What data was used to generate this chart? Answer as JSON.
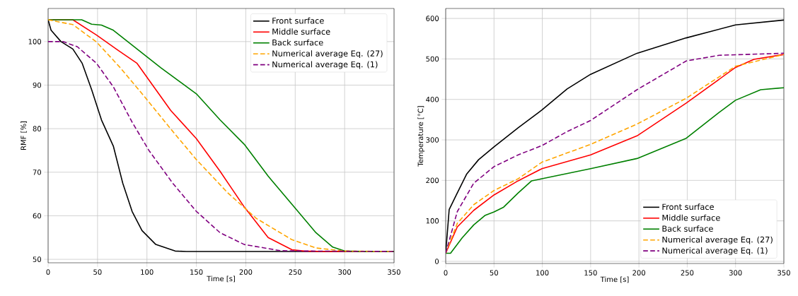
{
  "chart_data": [
    {
      "type": "line",
      "xlabel": "Time [s]",
      "ylabel": "RMF [%]",
      "xlim": [
        0,
        350
      ],
      "ylim": [
        49.2,
        107.6
      ],
      "xticks": [
        0,
        50,
        100,
        150,
        200,
        250,
        300,
        350
      ],
      "yticks": [
        50,
        60,
        70,
        80,
        90,
        100
      ],
      "grid": true,
      "legend": "top right",
      "marker": "none",
      "series": [
        {
          "name": "Front surface",
          "color": "#000000",
          "line_style": "solid",
          "x": [
            0,
            3,
            13,
            25,
            34.5,
            44,
            54,
            66,
            75.5,
            85,
            95,
            109,
            128.5,
            140,
            200,
            300,
            350
          ],
          "values": [
            105,
            102.6,
            100,
            98.3,
            95,
            89,
            82,
            76,
            67.5,
            61,
            56.6,
            53.4,
            51.9,
            51.8,
            51.8,
            51.8,
            51.8
          ]
        },
        {
          "name": "Middle surface",
          "color": "#ff0000",
          "line_style": "solid",
          "x": [
            0,
            25,
            49,
            70.7,
            90,
            107,
            124,
            150,
            174,
            198.5,
            222.6,
            246.7,
            259,
            280,
            350
          ],
          "values": [
            105,
            105,
            101.5,
            98,
            95,
            89.6,
            84.2,
            77.7,
            70.2,
            62,
            55,
            52.2,
            51.9,
            51.8,
            51.8
          ]
        },
        {
          "name": "Back surface",
          "color": "#008000",
          "line_style": "solid",
          "x": [
            0,
            34,
            44,
            54,
            66,
            90,
            114,
            150,
            174,
            198.5,
            222.6,
            249,
            271,
            288,
            300,
            320,
            350
          ],
          "values": [
            105,
            105,
            104,
            103.8,
            102.6,
            98.3,
            94,
            88,
            82,
            76.4,
            69.1,
            62,
            56.1,
            52.8,
            51.9,
            51.8,
            51.8
          ]
        },
        {
          "name": "Numerical average Eq. (27)",
          "color": "#ffa500",
          "line_style": "dashed",
          "x": [
            0,
            25,
            49,
            73,
            97,
            126,
            150,
            181.6,
            210.6,
            246.7,
            271,
            300,
            350
          ],
          "values": [
            105,
            103.9,
            99.9,
            94,
            87.5,
            79.4,
            72.9,
            65.3,
            59.4,
            54.5,
            52.6,
            51.9,
            51.8
          ]
        },
        {
          "name": "Numerical average Eq. (1)",
          "color": "#800080",
          "line_style": "dashed",
          "x": [
            0,
            15,
            29.7,
            49,
            66,
            85,
            102,
            126,
            150,
            174,
            198.5,
            234.7,
            259,
            350
          ],
          "values": [
            100,
            100,
            98.8,
            95,
            89.6,
            81.5,
            75,
            67.5,
            61,
            56.1,
            53.4,
            52,
            51.9,
            51.8
          ]
        }
      ]
    },
    {
      "type": "line",
      "xlabel": "Time [s]",
      "ylabel": "Temperature [°C]",
      "xlim": [
        0,
        350
      ],
      "ylim": [
        -5.3,
        624.6
      ],
      "xticks": [
        0,
        50,
        100,
        150,
        200,
        250,
        300,
        350
      ],
      "yticks": [
        0,
        100,
        200,
        300,
        400,
        500,
        600
      ],
      "grid": true,
      "legend": "bottom right",
      "marker": "none",
      "series": [
        {
          "name": "Front surface",
          "color": "#000000",
          "line_style": "solid",
          "x": [
            0,
            3.6,
            12,
            21.8,
            34,
            50,
            75,
            99.6,
            125.7,
            150,
            198,
            249,
            300,
            350
          ],
          "values": [
            20,
            128,
            169,
            216,
            251,
            283,
            330,
            374,
            426,
            462,
            514,
            552,
            584,
            596
          ]
        },
        {
          "name": "Middle surface",
          "color": "#ff0000",
          "line_style": "solid",
          "x": [
            0,
            12,
            29,
            50,
            75,
            99.6,
            150,
            198,
            249,
            300,
            319,
            350
          ],
          "values": [
            20,
            85,
            126,
            164,
            199,
            229,
            263,
            310,
            391,
            479,
            499,
            511
          ]
        },
        {
          "name": "Back surface",
          "color": "#008000",
          "line_style": "solid",
          "x": [
            0,
            5,
            17,
            29,
            41,
            50,
            60,
            75,
            89,
            99.6,
            150,
            198,
            249,
            283,
            300,
            326,
            350
          ],
          "values": [
            20,
            20,
            58,
            90,
            114,
            122,
            134,
            169,
            199,
            204,
            229,
            254,
            304,
            368,
            398,
            424,
            429
          ]
        },
        {
          "name": "Numerical average Eq. (27)",
          "color": "#ffa500",
          "line_style": "dashed",
          "x": [
            0,
            12,
            29,
            50,
            75,
            99.6,
            150,
            198,
            249,
            300,
            350
          ],
          "values": [
            20,
            94,
            140,
            175,
            204,
            245,
            289,
            339,
            403,
            482,
            511
          ]
        },
        {
          "name": "Numerical average Eq. (1)",
          "color": "#800080",
          "line_style": "dashed",
          "x": [
            0,
            12,
            29,
            50,
            75,
            99.6,
            126,
            150,
            198,
            249,
            283,
            350
          ],
          "values": [
            20,
            123,
            193,
            234,
            263,
            286,
            321,
            348,
            424,
            495,
            509,
            514
          ]
        }
      ]
    }
  ]
}
